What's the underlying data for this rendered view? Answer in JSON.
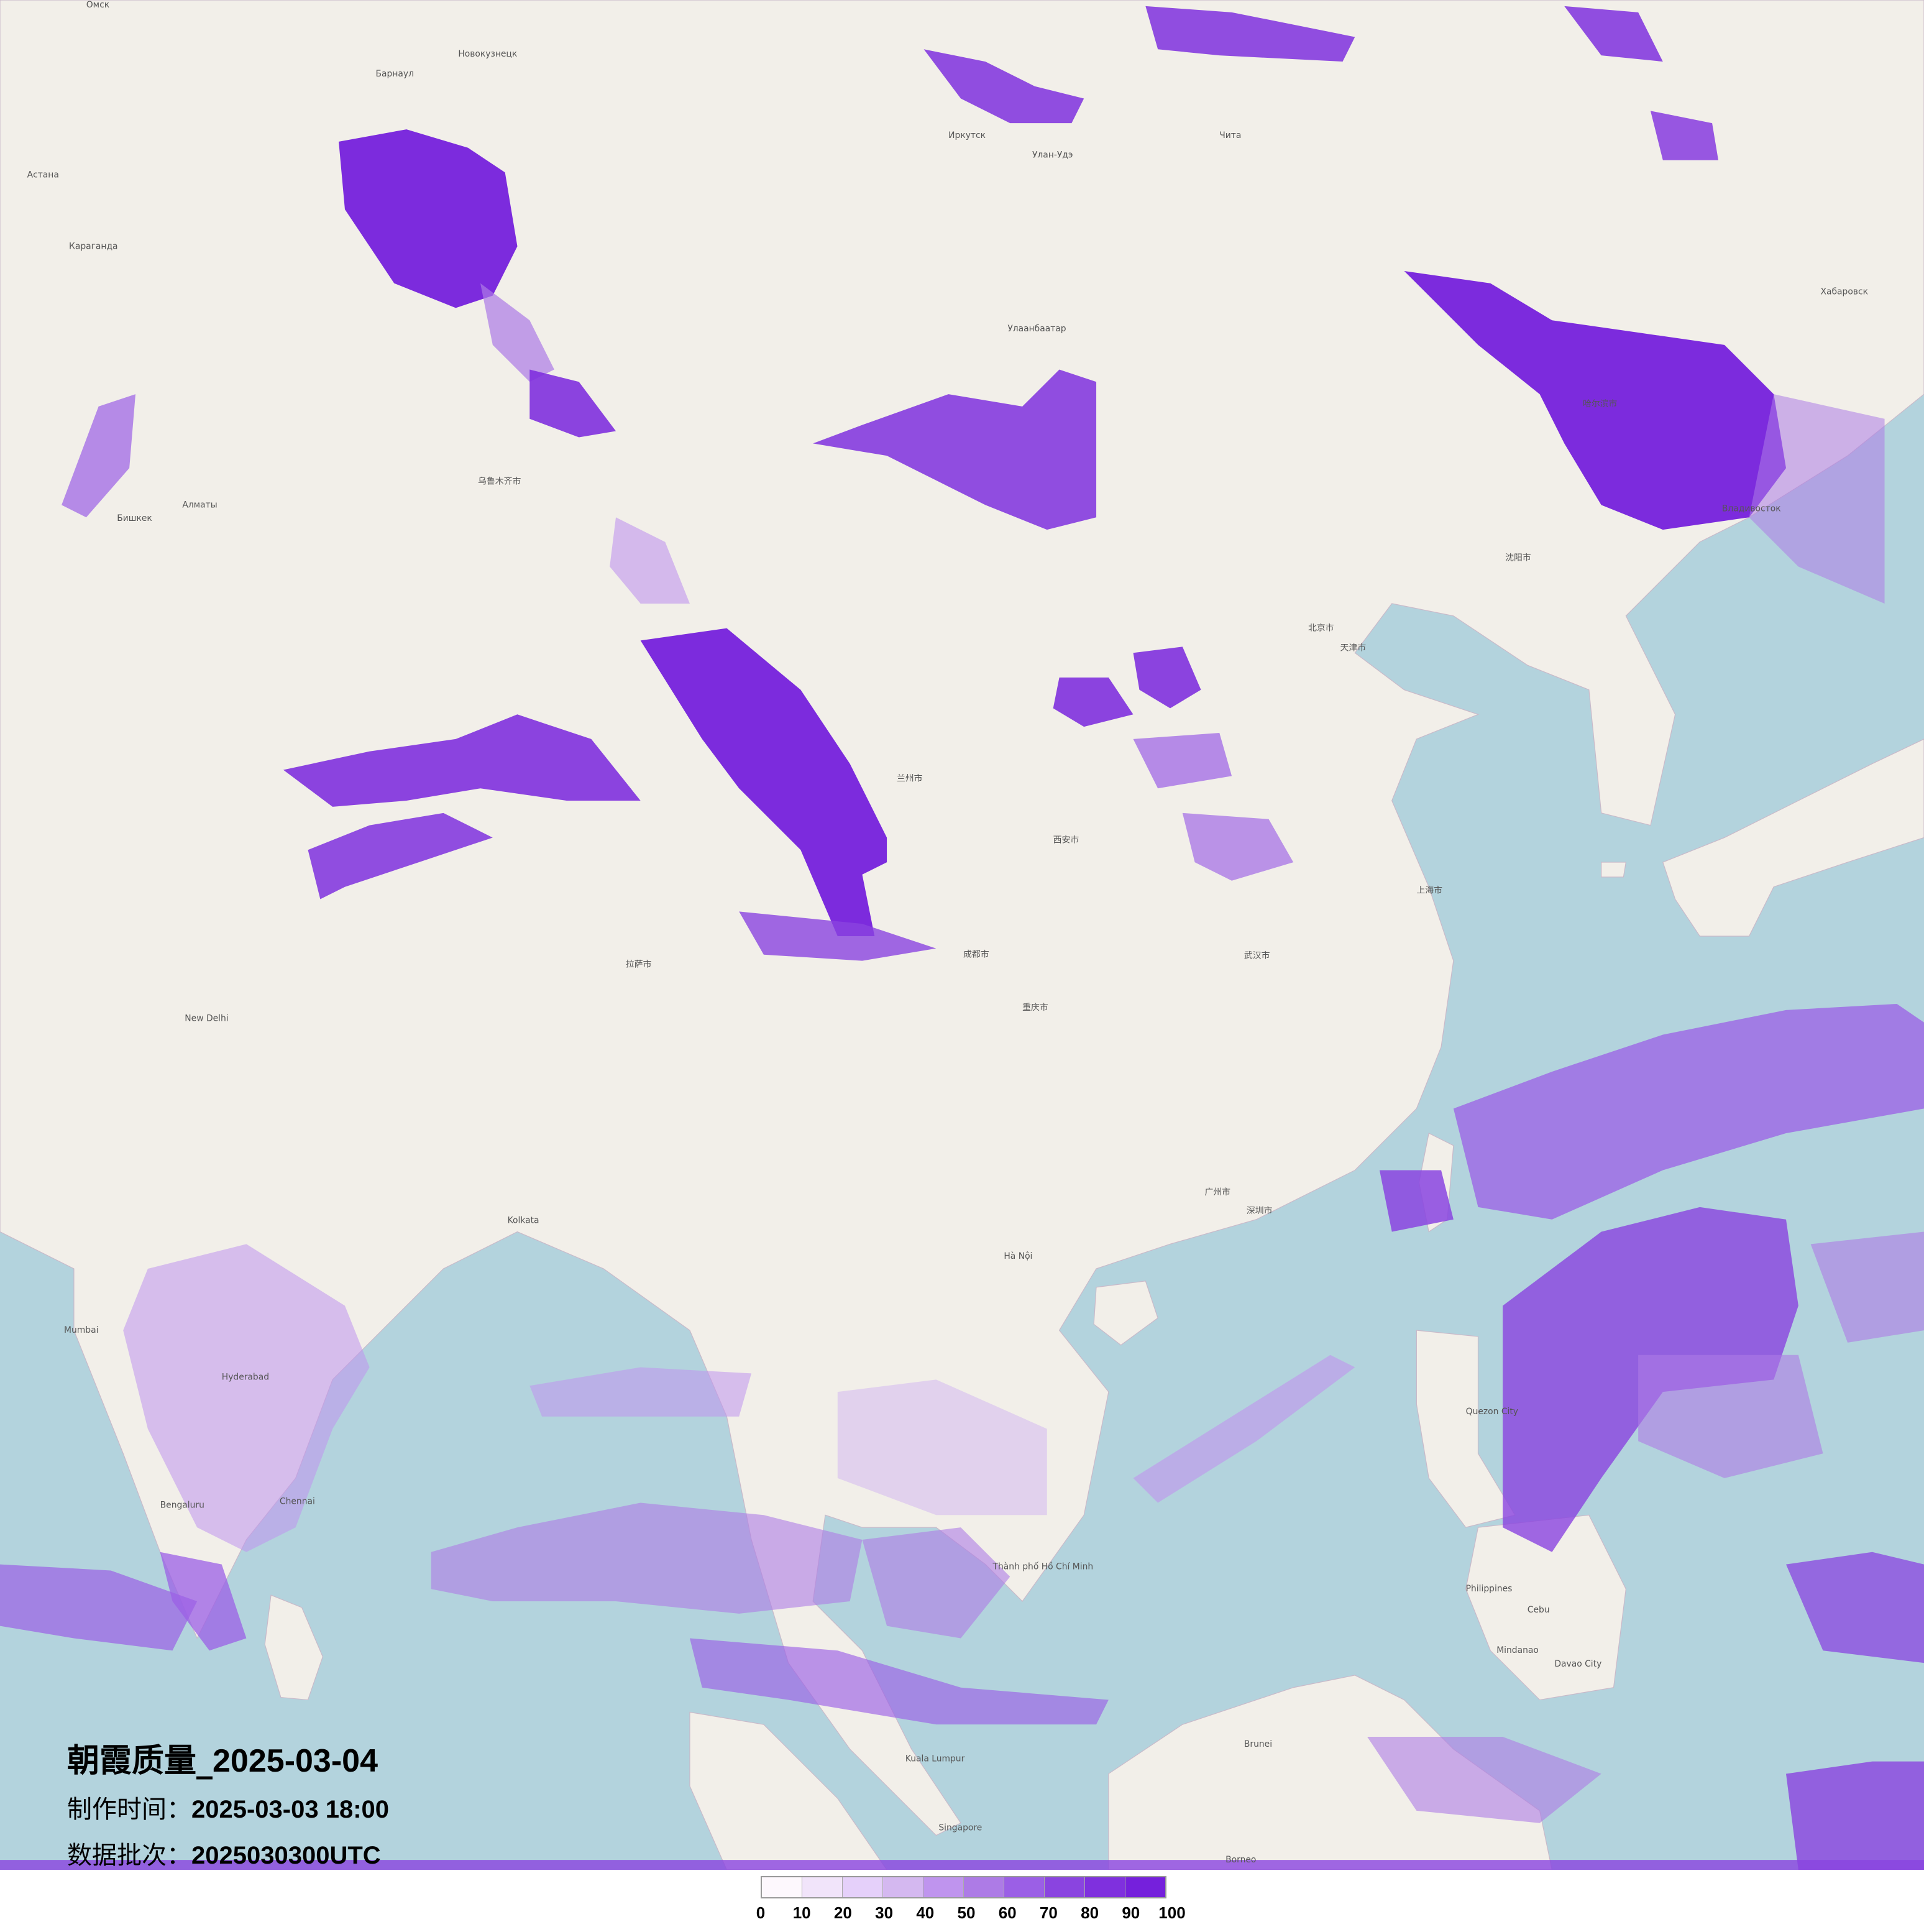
{
  "title": {
    "label": "朝霞质量_",
    "date": "2025-03-04"
  },
  "production_time": {
    "label": "制作时间：",
    "value": "2025-03-03 18:00"
  },
  "data_batch": {
    "label": "数据批次：",
    "value": "2025030300UTC"
  },
  "legend": {
    "ticks": [
      "0",
      "10",
      "20",
      "30",
      "40",
      "50",
      "60",
      "70",
      "80",
      "90",
      "100"
    ],
    "colors": [
      "#fdf8fd",
      "#f1e4fa",
      "#e5d0fa",
      "#d4b8f0",
      "#bf94ee",
      "#ad7be6",
      "#9b5fe6",
      "#8a44e0",
      "#7f30de",
      "#7520dc"
    ]
  },
  "map": {
    "land_color": "#f2efe9",
    "water_color": "#b3d3dd",
    "places": [
      "Омск",
      "Барнаул",
      "Новокузнецк",
      "Астана",
      "Караганда",
      "Алматы",
      "Бишкек",
      "Иркутск",
      "Улан-Удэ",
      "Чита",
      "Улаанбаатар",
      "Хабаровск",
      "Владивосток",
      "乌鲁木齐市",
      "北京市",
      "天津市",
      "上海市",
      "武汉市",
      "成都市",
      "重庆市",
      "广州市",
      "深圳市",
      "西安市",
      "兰州市",
      "拉萨市",
      "哈尔滨市",
      "沈阳市",
      "New Delhi",
      "Kolkata",
      "Mumbai",
      "Hyderabad",
      "Bengaluru",
      "Chennai",
      "Hà Nội",
      "Thành phố Hồ Chí Minh",
      "Kuala Lumpur",
      "Singapore",
      "Quezon City",
      "Cebu",
      "Davao City",
      "Brunei",
      "Borneo",
      "Philippines",
      "Mindanao"
    ]
  }
}
